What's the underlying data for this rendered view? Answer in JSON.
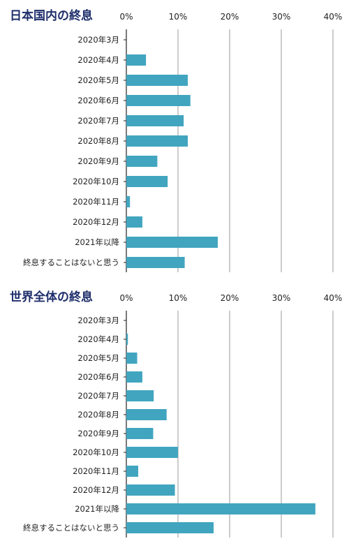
{
  "chart_data": [
    {
      "type": "bar",
      "orientation": "horizontal",
      "title": "日本国内の終息",
      "xlim": [
        0,
        40
      ],
      "tick_labels": [
        "0%",
        "10%",
        "20%",
        "30%",
        "40%"
      ],
      "grid": true,
      "categories": [
        "2020年3月",
        "2020年4月",
        "2020年5月",
        "2020年6月",
        "2020年7月",
        "2020年8月",
        "2020年9月",
        "2020年10月",
        "2020年11月",
        "2020年12月",
        "2021年以降",
        "終息することはないと思う"
      ],
      "values": [
        0,
        3.8,
        11.9,
        12.4,
        11.1,
        11.9,
        6.0,
        8.0,
        0.7,
        3.1,
        17.7,
        11.3
      ],
      "color": "#41A5BF"
    },
    {
      "type": "bar",
      "orientation": "horizontal",
      "title": "世界全体の終息",
      "xlim": [
        0,
        40
      ],
      "tick_labels": [
        "0%",
        "10%",
        "20%",
        "30%",
        "40%"
      ],
      "grid": true,
      "categories": [
        "2020年3月",
        "2020年4月",
        "2020年5月",
        "2020年6月",
        "2020年7月",
        "2020年8月",
        "2020年9月",
        "2020年10月",
        "2020年11月",
        "2020年12月",
        "2021年以降",
        "終息することはないと思う"
      ],
      "values": [
        0,
        0.3,
        2.1,
        3.1,
        5.3,
        7.8,
        5.2,
        10.0,
        2.3,
        9.4,
        36.6,
        16.9
      ],
      "color": "#41A5BF"
    }
  ]
}
